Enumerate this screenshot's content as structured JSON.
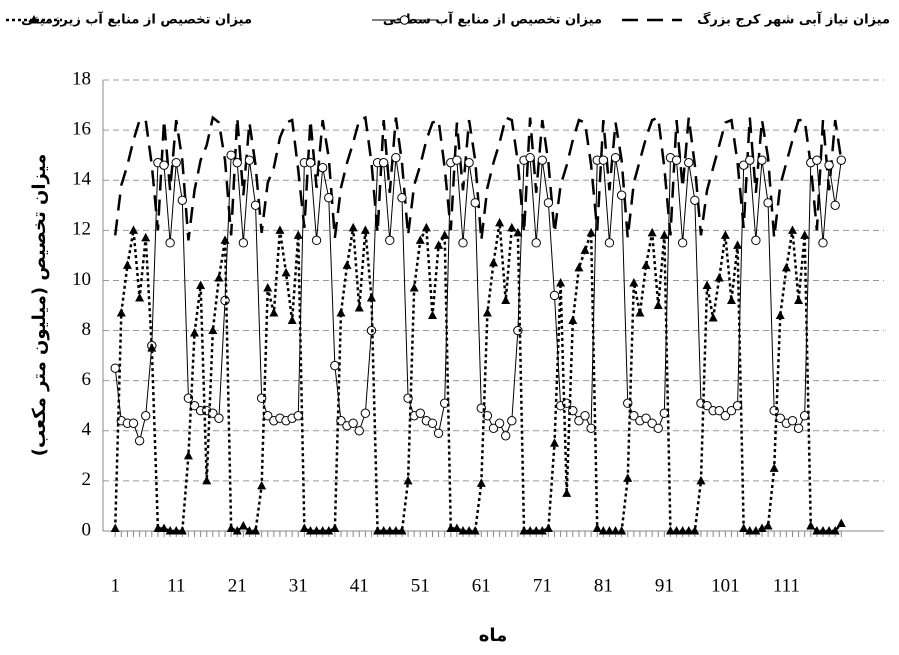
{
  "chart_data": {
    "type": "line",
    "x_label": "ماه",
    "y_label": "میزان تخصیص (میلیون متر مکعب)",
    "x": [
      1,
      2,
      3,
      4,
      5,
      6,
      7,
      8,
      9,
      10,
      11,
      12,
      13,
      14,
      15,
      16,
      17,
      18,
      19,
      20,
      21,
      22,
      23,
      24,
      25,
      26,
      27,
      28,
      29,
      30,
      31,
      32,
      33,
      34,
      35,
      36,
      37,
      38,
      39,
      40,
      41,
      42,
      43,
      44,
      45,
      46,
      47,
      48,
      49,
      50,
      51,
      52,
      53,
      54,
      55,
      56,
      57,
      58,
      59,
      60,
      61,
      62,
      63,
      64,
      65,
      66,
      67,
      68,
      69,
      70,
      71,
      72,
      73,
      74,
      75,
      76,
      77,
      78,
      79,
      80,
      81,
      82,
      83,
      84,
      85,
      86,
      87,
      88,
      89,
      90,
      91,
      92,
      93,
      94,
      95,
      96,
      97,
      98,
      99,
      100,
      101,
      102,
      103,
      104,
      105,
      106,
      107,
      108,
      109,
      110,
      111,
      112,
      113,
      114,
      115,
      116,
      117,
      118,
      119,
      120
    ],
    "xlim": [
      -1,
      127
    ],
    "xticks": [
      1,
      11,
      21,
      31,
      41,
      51,
      61,
      71,
      81,
      91,
      101,
      111
    ],
    "ylim": [
      0,
      18
    ],
    "yticks": [
      0,
      2,
      4,
      6,
      8,
      10,
      12,
      14,
      16,
      18
    ],
    "grid": true,
    "series": [
      {
        "name": "میزان نیاز آبی شهر کرج بزرگ",
        "color": "#000000",
        "style": "dashed",
        "values": [
          11.8,
          13.8,
          14.6,
          15.6,
          16.4,
          16.4,
          14.6,
          12.0,
          16.4,
          13.6,
          16.4,
          14.8,
          11.6,
          13.6,
          14.8,
          15.4,
          16.5,
          16.3,
          14.8,
          11.8,
          16.5,
          13.4,
          16.3,
          14.6,
          11.9,
          13.9,
          14.5,
          15.7,
          16.3,
          16.4,
          14.4,
          12.1,
          16.4,
          13.7,
          16.4,
          14.9,
          11.7,
          13.7,
          14.7,
          15.5,
          16.4,
          16.5,
          14.7,
          11.9,
          16.4,
          13.5,
          16.5,
          14.7,
          11.8,
          13.8,
          14.6,
          15.6,
          16.3,
          16.4,
          14.5,
          12.0,
          16.3,
          13.6,
          16.4,
          14.8,
          11.6,
          13.7,
          14.7,
          15.5,
          16.5,
          16.4,
          14.7,
          11.9,
          16.5,
          13.5,
          16.4,
          14.7,
          11.9,
          13.8,
          14.6,
          15.6,
          16.4,
          16.3,
          14.6,
          12.0,
          16.4,
          13.6,
          16.3,
          14.8,
          11.7,
          13.9,
          14.8,
          15.7,
          16.4,
          16.5,
          14.5,
          11.8,
          16.4,
          13.7,
          16.5,
          14.6,
          11.8,
          13.6,
          14.5,
          15.4,
          16.3,
          16.4,
          14.7,
          12.1,
          16.5,
          13.5,
          16.4,
          14.9,
          11.7,
          13.8,
          14.7,
          15.6,
          16.4,
          16.4,
          14.6,
          12.0,
          16.4,
          13.6,
          16.4,
          14.8
        ]
      },
      {
        "name": "میزان تخصیص از منابع آب سطحی",
        "color": "#000000",
        "style": "solid",
        "marker": "circle",
        "values": [
          6.5,
          4.4,
          4.3,
          4.3,
          3.6,
          4.6,
          7.4,
          14.7,
          14.6,
          11.5,
          14.7,
          13.2,
          5.3,
          5.0,
          4.8,
          4.8,
          4.7,
          4.5,
          9.2,
          15.0,
          14.7,
          11.5,
          14.8,
          13.0,
          5.3,
          4.6,
          4.4,
          4.5,
          4.4,
          4.5,
          4.6,
          14.7,
          14.7,
          11.6,
          14.5,
          13.3,
          6.6,
          4.4,
          4.2,
          4.3,
          4.0,
          4.7,
          8.0,
          14.7,
          14.7,
          11.6,
          14.9,
          13.3,
          5.3,
          4.6,
          4.7,
          4.4,
          4.3,
          3.9,
          5.1,
          14.7,
          14.8,
          11.5,
          14.7,
          13.1,
          4.9,
          4.6,
          4.1,
          4.3,
          3.8,
          4.4,
          8.0,
          14.8,
          14.9,
          11.5,
          14.8,
          13.1,
          9.4,
          5.0,
          5.1,
          4.8,
          4.4,
          4.6,
          4.1,
          14.8,
          14.8,
          11.5,
          14.9,
          13.4,
          5.1,
          4.6,
          4.4,
          4.5,
          4.3,
          4.1,
          4.7,
          14.9,
          14.8,
          11.5,
          14.7,
          13.2,
          5.1,
          5.0,
          4.8,
          4.8,
          4.6,
          4.8,
          5.0,
          14.6,
          14.8,
          11.6,
          14.8,
          13.1,
          4.8,
          4.5,
          4.3,
          4.4,
          4.1,
          4.6,
          14.7,
          14.8,
          11.5,
          14.6,
          13.0,
          14.8
        ]
      },
      {
        "name": "میزان تخصیص از منابع آب زیرزمینی",
        "color": "#000000",
        "style": "dotted",
        "marker": "triangle",
        "values": [
          0.1,
          8.7,
          10.6,
          12.0,
          9.3,
          11.7,
          7.3,
          0.1,
          0.1,
          0,
          0,
          0,
          3.0,
          7.9,
          9.8,
          2.0,
          8.0,
          10.1,
          11.6,
          0.1,
          0,
          0.2,
          0,
          0,
          1.8,
          9.7,
          8.7,
          12.0,
          10.3,
          8.4,
          11.8,
          0.1,
          0,
          0,
          0,
          0,
          0.1,
          8.7,
          10.6,
          12.1,
          8.9,
          12.0,
          9.3,
          0,
          0,
          0,
          0,
          0,
          2.0,
          9.7,
          11.6,
          12.1,
          8.6,
          11.4,
          11.8,
          0.1,
          0.1,
          0,
          0,
          0,
          1.9,
          8.7,
          10.7,
          12.3,
          9.2,
          12.1,
          11.9,
          0,
          0,
          0,
          0,
          0.1,
          3.5,
          9.9,
          1.5,
          8.4,
          10.5,
          11.2,
          11.9,
          0.1,
          0,
          0,
          0,
          0,
          2.1,
          9.9,
          8.7,
          10.6,
          11.9,
          9.0,
          11.8,
          0,
          0,
          0,
          0,
          0,
          2.0,
          9.8,
          8.5,
          10.1,
          11.8,
          9.2,
          11.4,
          0.1,
          0,
          0,
          0.1,
          0.2,
          2.5,
          8.6,
          10.5,
          12.0,
          9.2,
          11.8,
          0.2,
          0,
          0,
          0,
          0,
          0.3
        ]
      }
    ]
  }
}
